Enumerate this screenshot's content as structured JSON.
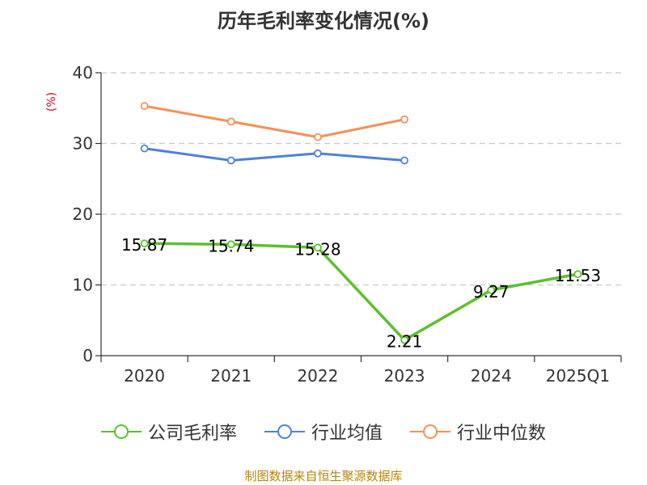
{
  "chart_data": {
    "type": "line",
    "title": "历年毛利率变化情况(%)",
    "unit": "(%)",
    "categories": [
      "2020",
      "2021",
      "2022",
      "2023",
      "2024",
      "2025Q1"
    ],
    "ylim": [
      0,
      40
    ],
    "yticks": [
      0,
      10,
      20,
      30,
      40
    ],
    "grid": true,
    "legend_position": "bottom",
    "series": [
      {
        "name": "公司毛利率",
        "color": "#5cc02c",
        "values": [
          15.87,
          15.74,
          15.28,
          2.21,
          9.27,
          11.53
        ],
        "labels": [
          "15.87",
          "15.74",
          "15.28",
          "2.21",
          "9.27",
          "11.53"
        ]
      },
      {
        "name": "行业均值",
        "color": "#4f81d8",
        "values": [
          29.3,
          27.6,
          28.6,
          27.6,
          null,
          null
        ]
      },
      {
        "name": "行业中位数",
        "color": "#f4915a",
        "values": [
          35.3,
          33.1,
          30.9,
          33.4,
          null,
          null
        ]
      }
    ]
  },
  "source": "制图数据来自恒生聚源数据库"
}
